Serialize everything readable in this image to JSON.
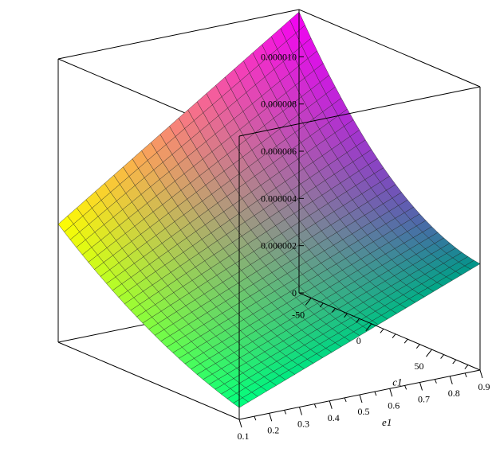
{
  "chart_data": {
    "type": "surface3d",
    "title": "",
    "axes": {
      "x": {
        "label": "c1",
        "range": [
          -60,
          90
        ],
        "ticks": [
          -50,
          0,
          50
        ],
        "tick_labels": [
          "-50",
          "0",
          "50"
        ]
      },
      "y": {
        "label": "e1",
        "range": [
          0.1,
          0.9
        ],
        "ticks": [
          0.9,
          0.8,
          0.7,
          0.6,
          0.5,
          0.4,
          0.3,
          0.2,
          0.1
        ],
        "tick_labels": [
          "0.9",
          "0.8",
          "0.7",
          "0.6",
          "0.5",
          "0.4",
          "0.3",
          "0.2",
          "0.1"
        ]
      },
      "z": {
        "label": "",
        "range": [
          0,
          1.2e-05
        ],
        "ticks": [
          0,
          2e-06,
          4e-06,
          6e-06,
          8e-06,
          1e-05
        ],
        "tick_labels": [
          "0",
          "0.000002",
          "0.000004",
          "0.000006",
          "0.000008",
          "0.000010"
        ]
      }
    },
    "surface": {
      "corner_values": {
        "c1_min_e1_min": 1.19e-05,
        "c1_min_e1_max": 5e-06,
        "c1_max_e1_min": 4.5e-06,
        "c1_max_e1_max": 5e-07
      },
      "minimum_along_c1_at_e1_min": {
        "c1": 45,
        "z": 1.5e-06
      },
      "colormap": [
        "#ff00ff",
        "#ff8080",
        "#ffff00",
        "#00ff80",
        "#40ff80"
      ]
    },
    "box": true,
    "grid": true
  }
}
